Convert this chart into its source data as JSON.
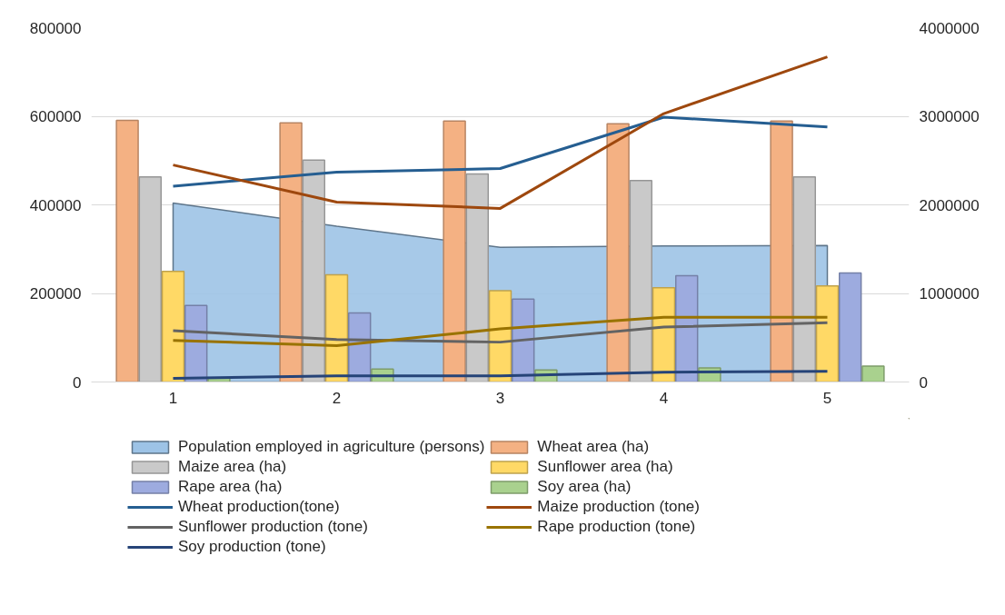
{
  "chart_data": {
    "type": "bar",
    "categories": [
      "1",
      "2",
      "3",
      "4",
      "5"
    ],
    "ylim": [
      0,
      800000
    ],
    "yticks": [
      0,
      200000,
      400000,
      600000,
      800000
    ],
    "y2lim": [
      0,
      4000000
    ],
    "y2ticks": [
      0,
      1000000,
      2000000,
      3000000,
      4000000
    ],
    "grid": "y",
    "legend": "bottom",
    "series": [
      {
        "name": "Population employed in agriculture (persons)",
        "type": "area",
        "color": "#9dc3e6",
        "values": [
          404000,
          352000,
          304000,
          307000,
          308000
        ]
      },
      {
        "name": "Wheat area (ha)",
        "color": "#f4b183",
        "values": [
          591000,
          585000,
          589000,
          583000,
          589000
        ]
      },
      {
        "name": "Maize area (ha)",
        "color": "#c9c9c9",
        "values": [
          463000,
          501000,
          470000,
          455000,
          463000
        ]
      },
      {
        "name": "Sunflower area (ha)",
        "color": "#ffd966",
        "values": [
          250000,
          242000,
          206000,
          213000,
          217000
        ]
      },
      {
        "name": "Rape area (ha)",
        "color": "#9dabdf",
        "values": [
          173000,
          156000,
          187000,
          240000,
          246000
        ]
      },
      {
        "name": "Soy area (ha)",
        "color": "#a9d18e",
        "values": [
          10000,
          29000,
          27000,
          32000,
          36000
        ]
      },
      {
        "name": "Wheat production(tone)",
        "type": "line",
        "axis": "y2",
        "color": "#255e91",
        "values": [
          2210000,
          2370000,
          2410000,
          2990000,
          2880000
        ]
      },
      {
        "name": "Maize production (tone)",
        "type": "line",
        "axis": "y2",
        "color": "#9e480e",
        "values": [
          2450000,
          2030000,
          1960000,
          3030000,
          3670000
        ]
      },
      {
        "name": "Sunflower production (tone)",
        "type": "line",
        "axis": "y2",
        "color": "#636363",
        "values": [
          580000,
          480000,
          450000,
          620000,
          670000
        ]
      },
      {
        "name": "Rape production (tone)",
        "type": "line",
        "axis": "y2",
        "color": "#997300",
        "values": [
          470000,
          410000,
          600000,
          730000,
          730000
        ]
      },
      {
        "name": "Soy production (tone)",
        "type": "line",
        "axis": "y2",
        "color": "#264478",
        "values": [
          40000,
          70000,
          70000,
          110000,
          120000
        ]
      }
    ]
  }
}
